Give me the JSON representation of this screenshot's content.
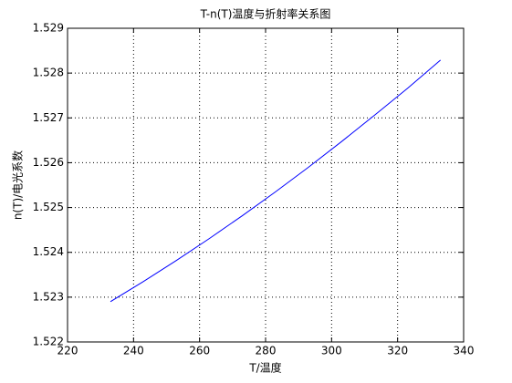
{
  "chart_data": {
    "type": "line",
    "title": "T-n(T)温度与折射率关系图",
    "x_label": "T/温度",
    "y_label": "n(T)/电光系数",
    "x": [
      233,
      243,
      253,
      263,
      273,
      283,
      293,
      303,
      313,
      323,
      333
    ],
    "series": [
      {
        "color": "#0000ff",
        "values": [
          1.5229,
          1.52335,
          1.52382,
          1.52431,
          1.52482,
          1.52535,
          1.5259,
          1.52647,
          1.52706,
          1.52766,
          1.52829
        ]
      }
    ],
    "xlim": [
      220,
      340
    ],
    "xticks": [
      220,
      240,
      260,
      280,
      300,
      320,
      340
    ],
    "ylim": [
      1.522,
      1.529
    ],
    "yticks": [
      1.522,
      1.523,
      1.524,
      1.525,
      1.526,
      1.527,
      1.528,
      1.529
    ],
    "grid": true
  }
}
